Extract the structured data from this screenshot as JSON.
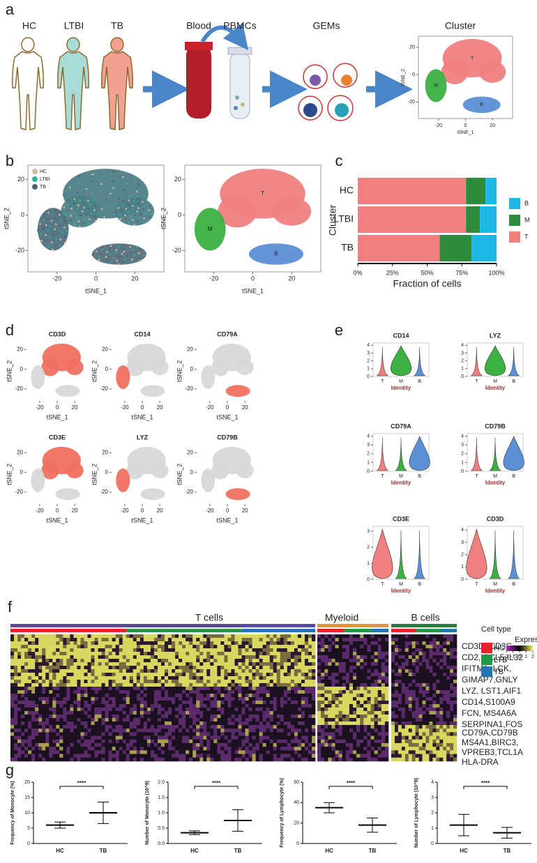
{
  "panel_labels": [
    "a",
    "b",
    "c",
    "d",
    "e",
    "f",
    "g"
  ],
  "panel_a": {
    "groups": [
      "HC",
      "LTBI",
      "TB"
    ],
    "steps": [
      "Blood",
      "PBMCs",
      "GEMs"
    ],
    "cluster_title": "Cluster",
    "cluster_labels": [
      "T",
      "M",
      "B"
    ]
  },
  "tsne_axes": {
    "xlabel": "tSNE_1",
    "ylabel": "tSNE_2",
    "xticks": [
      -20,
      0,
      20
    ],
    "yticks": [
      -20,
      0,
      20
    ],
    "xlim": [
      -35,
      35
    ],
    "ylim": [
      -32,
      28
    ]
  },
  "panel_b": {
    "legend": [
      {
        "name": "HC",
        "color": "#c9bfa5"
      },
      {
        "name": "LTBI",
        "color": "#2ab0a8"
      },
      {
        "name": "TB",
        "color": "#4c6275"
      }
    ],
    "cluster_labels": [
      "T",
      "M",
      "B"
    ]
  },
  "chart_data": {
    "type": "bar",
    "orientation": "horizontal",
    "stacked": true,
    "ylabel": "Cluster",
    "xlabel": "Fraction of cells",
    "categories": [
      "HC",
      "LTBI",
      "TB"
    ],
    "series": [
      {
        "name": "T",
        "color": "#f08080",
        "values": [
          78,
          78,
          59
        ]
      },
      {
        "name": "M",
        "color": "#2e8b3e",
        "values": [
          14,
          10,
          23
        ]
      },
      {
        "name": "B",
        "color": "#1fb8e6",
        "values": [
          8,
          12,
          18
        ]
      }
    ],
    "xlim": [
      0,
      100
    ],
    "xticks": [
      {
        "value": 0,
        "label": "0%"
      },
      {
        "value": 25,
        "label": "25%"
      },
      {
        "value": 50,
        "label": "50%"
      },
      {
        "value": 75,
        "label": "75%"
      },
      {
        "value": 100,
        "label": "100%"
      }
    ]
  },
  "panel_d": {
    "genes": [
      "CD3D",
      "CD14",
      "CD79A",
      "CD3E",
      "LYZ",
      "CD79B"
    ]
  },
  "panel_e": {
    "genes": [
      "CD14",
      "LYZ",
      "CD79A",
      "CD79B",
      "CD3E",
      "CD3D"
    ],
    "categories": [
      "T",
      "M",
      "B"
    ],
    "xlabel": "Identity",
    "yticks": [
      [
        0,
        1,
        2,
        3,
        4
      ],
      [
        0,
        1,
        2,
        3,
        4
      ],
      [
        0,
        1,
        2,
        3,
        4
      ],
      [
        0,
        1,
        2,
        3,
        4
      ],
      [
        0,
        1,
        2,
        3
      ],
      [
        0,
        1,
        2,
        3,
        4
      ]
    ]
  },
  "panel_f": {
    "groups": [
      "T cells",
      "Myeloid",
      "B cells"
    ],
    "gene_groups": [
      [
        "CD3D, CD3G",
        "CD2, CCL5,IL32",
        "IFITM1, LCK,",
        "GIMAP7,GNLY"
      ],
      [
        "LYZ, LST1,AIF1",
        "CD14,S100A9",
        "FCN, MS4A6A",
        "SERPINA1,FOS"
      ],
      [
        "CD79A,CD79B",
        "MS4A1,BIRC3,",
        "VPREB3,TCL1A",
        "HLA-DRA"
      ]
    ],
    "celltype_title": "Cell type",
    "celltypes": [
      {
        "name": "HC",
        "color": "#e8232a"
      },
      {
        "name": "LTB",
        "color": "#1e9a46"
      },
      {
        "name": "TB",
        "color": "#1f77b4"
      }
    ],
    "expression_title": "Expression",
    "expression_ticks": [
      -2,
      -1,
      0,
      1,
      2
    ]
  },
  "panel_g": {
    "categories": [
      "HC",
      "TB"
    ],
    "significance": "****",
    "plots": [
      {
        "ylabel": "Frequency of Monocyte (%)",
        "ylim": [
          0,
          20
        ],
        "yticks": [
          0,
          5,
          10,
          15,
          20
        ],
        "mean": [
          6,
          10
        ],
        "sd": [
          1,
          3.5
        ]
      },
      {
        "ylabel": "Number of Monocyte (10^9)",
        "ylim": [
          0,
          2
        ],
        "yticks": [
          {
            "value": 0,
            "label": "0.0"
          },
          0.5,
          {
            "value": 1,
            "label": "1.0"
          },
          1.5,
          {
            "value": 2,
            "label": "2.0"
          }
        ],
        "mean": [
          0.35,
          0.75
        ],
        "sd": [
          0.06,
          0.35
        ]
      },
      {
        "ylabel": "Frequency of Lymphocyte (%)",
        "ylim": [
          0,
          60
        ],
        "yticks": [
          0,
          20,
          40,
          60
        ],
        "mean": [
          35,
          18
        ],
        "sd": [
          5,
          7
        ]
      },
      {
        "ylabel": "Number of Lymphocyte (10^9)",
        "ylim": [
          0,
          4
        ],
        "yticks": [
          0,
          1,
          2,
          3,
          4
        ],
        "mean": [
          1.2,
          0.7
        ],
        "sd": [
          0.7,
          0.35
        ]
      }
    ]
  }
}
